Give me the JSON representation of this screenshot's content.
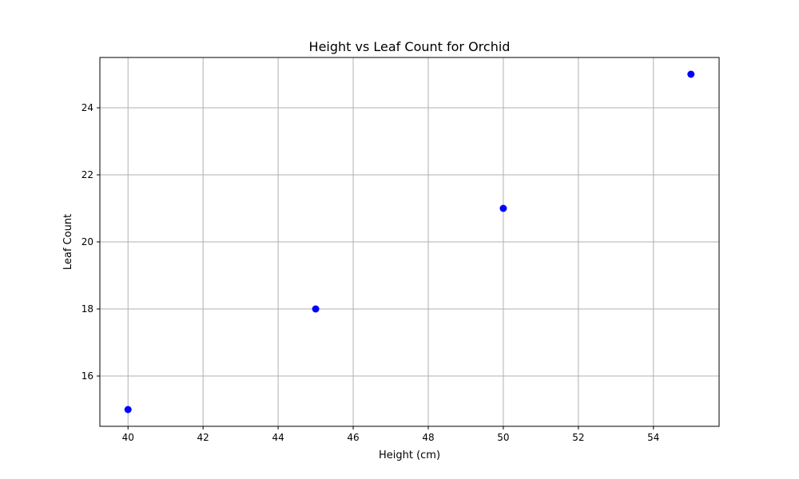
{
  "chart_data": {
    "type": "scatter",
    "title": "Height vs Leaf Count for Orchid",
    "xlabel": "Height (cm)",
    "ylabel": "Leaf Count",
    "x": [
      40,
      45,
      50,
      55
    ],
    "y": [
      15,
      18,
      21,
      25
    ],
    "xlim": [
      39.25,
      55.75
    ],
    "ylim": [
      14.5,
      25.5
    ],
    "xticks": [
      40,
      42,
      44,
      46,
      48,
      50,
      52,
      54
    ],
    "yticks": [
      16,
      18,
      20,
      22,
      24
    ],
    "grid": true,
    "legend": "none",
    "colors": {
      "points": "#0000ff",
      "grid": "#b0b0b0",
      "axes": "#000000"
    }
  }
}
